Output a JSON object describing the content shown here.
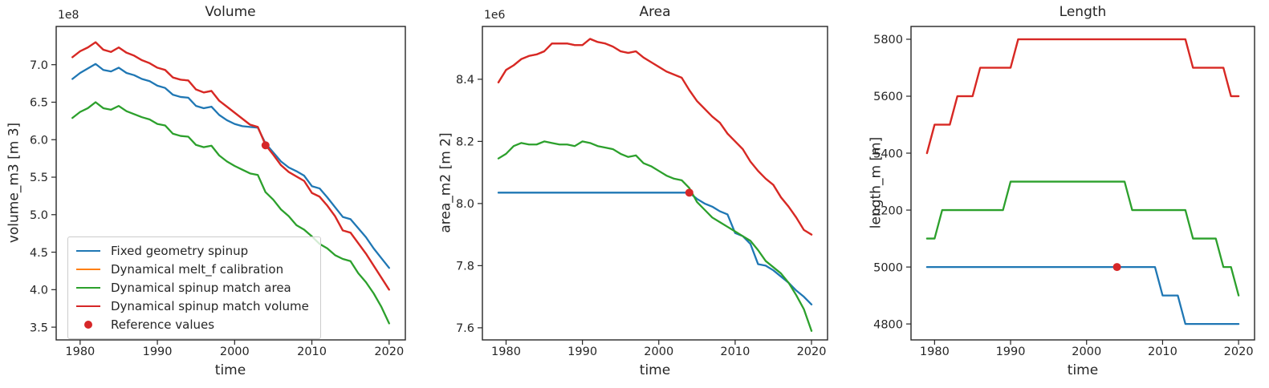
{
  "figure": {
    "background": "#ffffff",
    "text_color": "#262626",
    "spine_color": "#262626"
  },
  "chart_data": [
    {
      "type": "line",
      "title": "Volume",
      "xlabel": "time",
      "ylabel": "volume_m3 [m 3]",
      "offset_text": "1e8",
      "grid": false,
      "legend_position": "lower left",
      "xlim": [
        1976.9,
        2022.1
      ],
      "ylim": [
        3.33,
        7.51
      ],
      "xticks": [
        1980,
        1990,
        2000,
        2010,
        2020
      ],
      "xtick_labels": [
        "1980",
        "1990",
        "2000",
        "2010",
        "2020"
      ],
      "yticks": [
        3.5,
        4.0,
        4.5,
        5.0,
        5.5,
        6.0,
        6.5,
        7.0
      ],
      "ytick_labels": [
        "3.5",
        "4.0",
        "4.5",
        "5.0",
        "5.5",
        "6.0",
        "6.5",
        "7.0"
      ],
      "x": [
        1979,
        1980,
        1981,
        1982,
        1983,
        1984,
        1985,
        1986,
        1987,
        1988,
        1989,
        1990,
        1991,
        1992,
        1993,
        1994,
        1995,
        1996,
        1997,
        1998,
        1999,
        2000,
        2001,
        2002,
        2003,
        2004,
        2005,
        2006,
        2007,
        2008,
        2009,
        2010,
        2011,
        2012,
        2013,
        2014,
        2015,
        2016,
        2017,
        2018,
        2019,
        2020
      ],
      "series": [
        {
          "name": "Fixed geometry spinup",
          "color": "#1f77b4",
          "values": [
            6.81,
            6.89,
            6.95,
            7.01,
            6.93,
            6.91,
            6.96,
            6.89,
            6.86,
            6.81,
            6.78,
            6.72,
            6.69,
            6.6,
            6.57,
            6.56,
            6.45,
            6.42,
            6.44,
            6.33,
            6.26,
            6.21,
            6.18,
            6.17,
            6.16,
            5.95,
            5.83,
            5.71,
            5.63,
            5.58,
            5.52,
            5.38,
            5.35,
            5.23,
            5.1,
            4.97,
            4.94,
            4.82,
            4.7,
            4.55,
            4.42,
            4.29
          ]
        },
        {
          "name": "Dynamical melt_f calibration",
          "color": "#ff7f0e",
          "values": [
            7.1,
            7.18,
            7.23,
            7.3,
            7.2,
            7.17,
            7.23,
            7.16,
            7.12,
            7.06,
            7.02,
            6.96,
            6.93,
            6.83,
            6.8,
            6.79,
            6.67,
            6.63,
            6.65,
            6.52,
            6.44,
            6.36,
            6.28,
            6.2,
            6.17,
            5.93,
            5.8,
            5.66,
            5.57,
            5.51,
            5.45,
            5.29,
            5.24,
            5.12,
            4.98,
            4.79,
            4.76,
            4.62,
            4.48,
            4.32,
            4.16,
            4.0
          ]
        },
        {
          "name": "Dynamical spinup match area",
          "color": "#2ca02c",
          "values": [
            6.29,
            6.37,
            6.42,
            6.5,
            6.42,
            6.4,
            6.45,
            6.38,
            6.34,
            6.3,
            6.27,
            6.21,
            6.19,
            6.08,
            6.05,
            6.04,
            5.93,
            5.9,
            5.92,
            5.79,
            5.71,
            5.65,
            5.6,
            5.55,
            5.53,
            5.3,
            5.2,
            5.07,
            4.98,
            4.86,
            4.8,
            4.71,
            4.61,
            4.55,
            4.46,
            4.41,
            4.38,
            4.22,
            4.1,
            3.95,
            3.77,
            3.55
          ]
        },
        {
          "name": "Dynamical spinup match volume",
          "color": "#d62728",
          "values": [
            7.1,
            7.18,
            7.23,
            7.3,
            7.2,
            7.17,
            7.23,
            7.16,
            7.12,
            7.06,
            7.02,
            6.96,
            6.93,
            6.83,
            6.8,
            6.79,
            6.67,
            6.63,
            6.65,
            6.52,
            6.44,
            6.36,
            6.28,
            6.2,
            6.17,
            5.93,
            5.8,
            5.66,
            5.57,
            5.51,
            5.45,
            5.29,
            5.24,
            5.12,
            4.98,
            4.79,
            4.76,
            4.62,
            4.48,
            4.32,
            4.16,
            4.0
          ]
        }
      ],
      "reference_point": {
        "label": "Reference values",
        "color": "#d62728",
        "x": 2004,
        "y": 5.925
      },
      "legend": {
        "visible": true,
        "items": [
          {
            "label": "Fixed geometry spinup",
            "color": "#1f77b4",
            "marker": "line"
          },
          {
            "label": "Dynamical melt_f calibration",
            "color": "#ff7f0e",
            "marker": "line"
          },
          {
            "label": "Dynamical spinup match area",
            "color": "#2ca02c",
            "marker": "line"
          },
          {
            "label": "Dynamical spinup match volume",
            "color": "#d62728",
            "marker": "line"
          },
          {
            "label": "Reference values",
            "color": "#d62728",
            "marker": "dot"
          }
        ]
      }
    },
    {
      "type": "line",
      "title": "Area",
      "xlabel": "time",
      "ylabel": "area_m2 [m 2]",
      "offset_text": "1e6",
      "grid": false,
      "xlim": [
        1976.9,
        2022.1
      ],
      "ylim": [
        7.561,
        8.57
      ],
      "xticks": [
        1980,
        1990,
        2000,
        2010,
        2020
      ],
      "xtick_labels": [
        "1980",
        "1990",
        "2000",
        "2010",
        "2020"
      ],
      "yticks": [
        7.6,
        7.8,
        8.0,
        8.2,
        8.4
      ],
      "ytick_labels": [
        "7.6",
        "7.8",
        "8.0",
        "8.2",
        "8.4"
      ],
      "x": [
        1979,
        1980,
        1981,
        1982,
        1983,
        1984,
        1985,
        1986,
        1987,
        1988,
        1989,
        1990,
        1991,
        1992,
        1993,
        1994,
        1995,
        1996,
        1997,
        1998,
        1999,
        2000,
        2001,
        2002,
        2003,
        2004,
        2005,
        2006,
        2007,
        2008,
        2009,
        2010,
        2011,
        2012,
        2013,
        2014,
        2015,
        2016,
        2017,
        2018,
        2019,
        2020
      ],
      "series": [
        {
          "name": "Fixed geometry spinup",
          "color": "#1f77b4",
          "values": [
            8.035,
            8.035,
            8.035,
            8.035,
            8.035,
            8.035,
            8.035,
            8.035,
            8.035,
            8.035,
            8.035,
            8.035,
            8.035,
            8.035,
            8.035,
            8.035,
            8.035,
            8.035,
            8.035,
            8.035,
            8.035,
            8.035,
            8.035,
            8.035,
            8.035,
            8.035,
            8.015,
            8.0,
            7.99,
            7.975,
            7.965,
            7.905,
            7.895,
            7.87,
            7.805,
            7.8,
            7.785,
            7.765,
            7.745,
            7.72,
            7.7,
            7.675
          ]
        },
        {
          "name": "Dynamical melt_f calibration",
          "color": "#ff7f0e",
          "values": [
            8.39,
            8.43,
            8.445,
            8.465,
            8.475,
            8.48,
            8.49,
            8.515,
            8.515,
            8.515,
            8.51,
            8.51,
            8.53,
            8.52,
            8.515,
            8.505,
            8.49,
            8.485,
            8.49,
            8.47,
            8.455,
            8.44,
            8.425,
            8.415,
            8.405,
            8.365,
            8.33,
            8.305,
            8.28,
            8.26,
            8.225,
            8.2,
            8.175,
            8.135,
            8.105,
            8.08,
            8.06,
            8.02,
            7.99,
            7.955,
            7.915,
            7.9
          ]
        },
        {
          "name": "Dynamical spinup match area",
          "color": "#2ca02c",
          "values": [
            8.145,
            8.16,
            8.185,
            8.195,
            8.19,
            8.19,
            8.2,
            8.195,
            8.19,
            8.19,
            8.185,
            8.2,
            8.195,
            8.185,
            8.18,
            8.175,
            8.16,
            8.15,
            8.155,
            8.13,
            8.12,
            8.105,
            8.09,
            8.08,
            8.075,
            8.05,
            8.005,
            7.98,
            7.955,
            7.94,
            7.925,
            7.91,
            7.895,
            7.88,
            7.85,
            7.815,
            7.795,
            7.775,
            7.745,
            7.705,
            7.66,
            7.59
          ]
        },
        {
          "name": "Dynamical spinup match volume",
          "color": "#d62728",
          "values": [
            8.39,
            8.43,
            8.445,
            8.465,
            8.475,
            8.48,
            8.49,
            8.515,
            8.515,
            8.515,
            8.51,
            8.51,
            8.53,
            8.52,
            8.515,
            8.505,
            8.49,
            8.485,
            8.49,
            8.47,
            8.455,
            8.44,
            8.425,
            8.415,
            8.405,
            8.365,
            8.33,
            8.305,
            8.28,
            8.26,
            8.225,
            8.2,
            8.175,
            8.135,
            8.105,
            8.08,
            8.06,
            8.02,
            7.99,
            7.955,
            7.915,
            7.9
          ]
        }
      ],
      "reference_point": {
        "label": "Reference values",
        "color": "#d62728",
        "x": 2004,
        "y": 8.035
      }
    },
    {
      "type": "line",
      "title": "Length",
      "xlabel": "time",
      "ylabel": "length_m [m]",
      "grid": false,
      "xlim": [
        1976.9,
        2022.1
      ],
      "ylim": [
        4744,
        5845
      ],
      "xticks": [
        1980,
        1990,
        2000,
        2010,
        2020
      ],
      "xtick_labels": [
        "1980",
        "1990",
        "2000",
        "2010",
        "2020"
      ],
      "yticks": [
        4800,
        5000,
        5200,
        5400,
        5600,
        5800
      ],
      "ytick_labels": [
        "4800",
        "5000",
        "5200",
        "5400",
        "5600",
        "5800"
      ],
      "x": [
        1979,
        1980,
        1981,
        1982,
        1983,
        1984,
        1985,
        1986,
        1987,
        1988,
        1989,
        1990,
        1991,
        1992,
        1993,
        1994,
        1995,
        1996,
        1997,
        1998,
        1999,
        2000,
        2001,
        2002,
        2003,
        2004,
        2005,
        2006,
        2007,
        2008,
        2009,
        2010,
        2011,
        2012,
        2013,
        2014,
        2015,
        2016,
        2017,
        2018,
        2019,
        2020
      ],
      "series": [
        {
          "name": "Fixed geometry spinup",
          "color": "#1f77b4",
          "values": [
            5000,
            5000,
            5000,
            5000,
            5000,
            5000,
            5000,
            5000,
            5000,
            5000,
            5000,
            5000,
            5000,
            5000,
            5000,
            5000,
            5000,
            5000,
            5000,
            5000,
            5000,
            5000,
            5000,
            5000,
            5000,
            5000,
            5000,
            5000,
            5000,
            5000,
            5000,
            4900,
            4900,
            4900,
            4800,
            4800,
            4800,
            4800,
            4800,
            4800,
            4800,
            4800
          ]
        },
        {
          "name": "Dynamical melt_f calibration",
          "color": "#ff7f0e",
          "values": [
            5400,
            5500,
            5500,
            5500,
            5600,
            5600,
            5600,
            5700,
            5700,
            5700,
            5700,
            5700,
            5800,
            5800,
            5800,
            5800,
            5800,
            5800,
            5800,
            5800,
            5800,
            5800,
            5800,
            5800,
            5800,
            5800,
            5800,
            5800,
            5800,
            5800,
            5800,
            5800,
            5800,
            5800,
            5800,
            5700,
            5700,
            5700,
            5700,
            5700,
            5600,
            5600
          ]
        },
        {
          "name": "Dynamical spinup match area",
          "color": "#2ca02c",
          "values": [
            5100,
            5100,
            5200,
            5200,
            5200,
            5200,
            5200,
            5200,
            5200,
            5200,
            5200,
            5300,
            5300,
            5300,
            5300,
            5300,
            5300,
            5300,
            5300,
            5300,
            5300,
            5300,
            5300,
            5300,
            5300,
            5300,
            5300,
            5200,
            5200,
            5200,
            5200,
            5200,
            5200,
            5200,
            5200,
            5100,
            5100,
            5100,
            5100,
            5000,
            5000,
            4900
          ]
        },
        {
          "name": "Dynamical spinup match volume",
          "color": "#d62728",
          "values": [
            5400,
            5500,
            5500,
            5500,
            5600,
            5600,
            5600,
            5700,
            5700,
            5700,
            5700,
            5700,
            5800,
            5800,
            5800,
            5800,
            5800,
            5800,
            5800,
            5800,
            5800,
            5800,
            5800,
            5800,
            5800,
            5800,
            5800,
            5800,
            5800,
            5800,
            5800,
            5800,
            5800,
            5800,
            5800,
            5700,
            5700,
            5700,
            5700,
            5700,
            5600,
            5600
          ]
        }
      ],
      "reference_point": {
        "label": "Reference values",
        "color": "#d62728",
        "x": 2004,
        "y": 5000
      }
    }
  ]
}
